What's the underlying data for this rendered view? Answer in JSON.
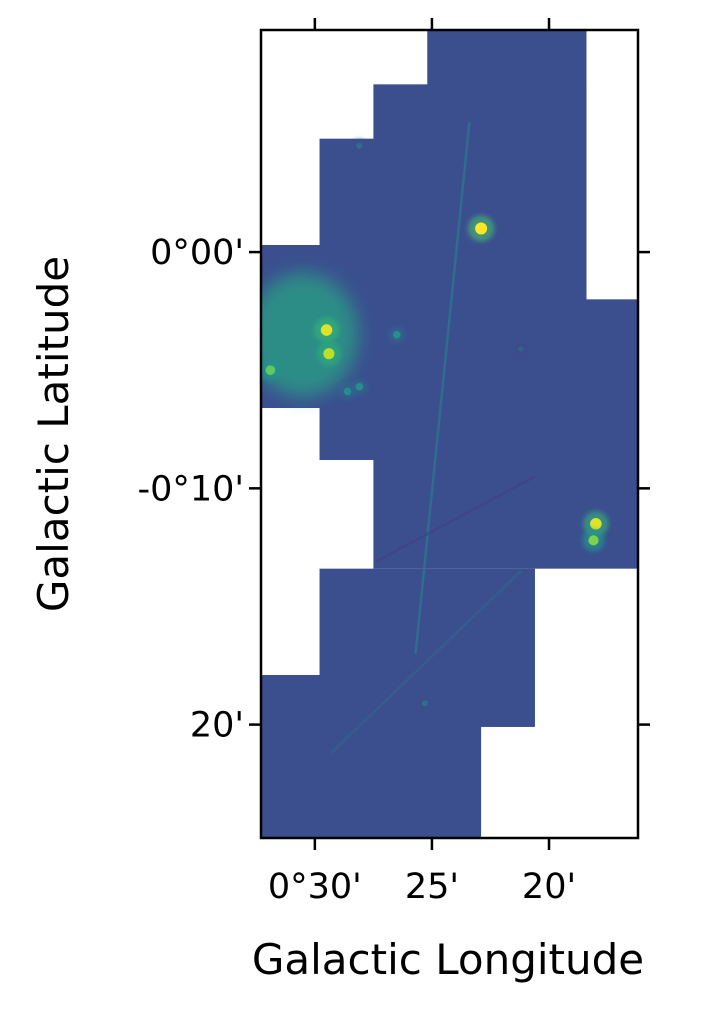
{
  "chart_data": {
    "type": "heatmap",
    "title": "",
    "xlabel": "Galactic Longitude",
    "ylabel": "Galactic Latitude",
    "x_axis_direction": "longitude increases to the left",
    "x_ticks": [
      {
        "label": "0°30'",
        "value_arcmin": 30
      },
      {
        "label": "25'",
        "value_arcmin": 25
      },
      {
        "label": "20'",
        "value_arcmin": 20
      }
    ],
    "y_ticks": [
      {
        "label": "0°00'",
        "value_arcmin": 0
      },
      {
        "label": "-0°10'",
        "value_arcmin": -10
      },
      {
        "label": "20'",
        "value_arcmin": -20
      }
    ],
    "xlim_arcmin": [
      32.3,
      16.2
    ],
    "ylim_arcmin": [
      -24.8,
      9.4
    ],
    "colormap": "viridis",
    "background_color": "#3b4f8f",
    "grid": false,
    "legend": "none",
    "coverage_mosaic": [
      {
        "l_range_arcmin": [
          25.2,
          18.4
        ],
        "b_range_arcmin": [
          2.7,
          9.4
        ]
      },
      {
        "l_range_arcmin": [
          27.5,
          18.4
        ],
        "b_range_arcmin": [
          0,
          7.1
        ]
      },
      {
        "l_range_arcmin": [
          29.8,
          18.4
        ],
        "b_range_arcmin": [
          -2,
          4.8
        ]
      },
      {
        "l_range_arcmin": [
          29.8,
          20.6
        ],
        "b_range_arcmin": [
          -2,
          0.3
        ]
      },
      {
        "l_range_arcmin": [
          32.3,
          18.4
        ],
        "b_range_arcmin": [
          -6.6,
          0.3
        ]
      },
      {
        "l_range_arcmin": [
          29.8,
          16.2
        ],
        "b_range_arcmin": [
          -8.8,
          -2
        ]
      },
      {
        "l_range_arcmin": [
          27.5,
          16.2
        ],
        "b_range_arcmin": [
          -13.4,
          -6.6
        ]
      },
      {
        "l_range_arcmin": [
          29.8,
          20.6
        ],
        "b_range_arcmin": [
          -20.1,
          -13.4
        ]
      },
      {
        "l_range_arcmin": [
          32.3,
          22.9
        ],
        "b_range_arcmin": [
          -24.8,
          -17.9
        ]
      }
    ],
    "features": [
      {
        "kind": "extended-emission",
        "l_arcmin": 30.5,
        "b_arcmin": -3.5,
        "intensity": 0.6
      },
      {
        "kind": "point-source",
        "l_arcmin": 29.5,
        "b_arcmin": -3.3,
        "intensity": 0.95
      },
      {
        "kind": "point-source",
        "l_arcmin": 29.4,
        "b_arcmin": -4.3,
        "intensity": 0.9
      },
      {
        "kind": "point-source",
        "l_arcmin": 31.9,
        "b_arcmin": -5.0,
        "intensity": 0.75
      },
      {
        "kind": "point-source",
        "l_arcmin": 22.9,
        "b_arcmin": 1.0,
        "intensity": 1.0
      },
      {
        "kind": "point-source",
        "l_arcmin": 28.1,
        "b_arcmin": 4.5,
        "intensity": 0.35
      },
      {
        "kind": "point-source",
        "l_arcmin": 18.0,
        "b_arcmin": -11.5,
        "intensity": 0.95
      },
      {
        "kind": "point-source",
        "l_arcmin": 18.1,
        "b_arcmin": -12.2,
        "intensity": 0.8
      },
      {
        "kind": "point-source",
        "l_arcmin": 26.5,
        "b_arcmin": -3.5,
        "intensity": 0.5
      },
      {
        "kind": "point-source",
        "l_arcmin": 28.6,
        "b_arcmin": -5.9,
        "intensity": 0.5
      },
      {
        "kind": "point-source",
        "l_arcmin": 28.1,
        "b_arcmin": -5.7,
        "intensity": 0.5
      },
      {
        "kind": "point-source",
        "l_arcmin": 25.3,
        "b_arcmin": -19.1,
        "intensity": 0.35
      },
      {
        "kind": "point-source",
        "l_arcmin": 21.2,
        "b_arcmin": -4.1,
        "intensity": 0.3
      },
      {
        "kind": "filament",
        "from": {
          "l_arcmin": 23.4,
          "b_arcmin": 5.5
        },
        "to": {
          "l_arcmin": 25.7,
          "b_arcmin": -17.0
        },
        "intensity": 0.4
      },
      {
        "kind": "filament",
        "from": {
          "l_arcmin": 21.2,
          "b_arcmin": -13.5
        },
        "to": {
          "l_arcmin": 29.3,
          "b_arcmin": -21.2
        },
        "intensity": 0.3
      },
      {
        "kind": "filament",
        "from": {
          "l_arcmin": 20.6,
          "b_arcmin": -9.5
        },
        "to": {
          "l_arcmin": 27.4,
          "b_arcmin": -13.1
        },
        "intensity": 0.2
      }
    ]
  }
}
